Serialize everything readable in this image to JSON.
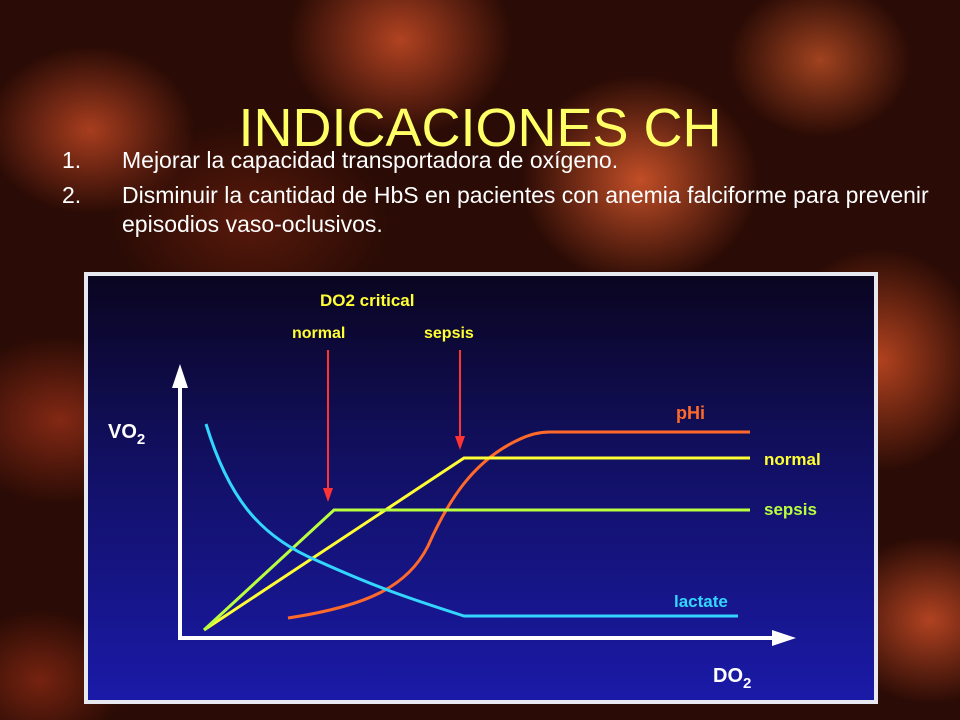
{
  "slide": {
    "title": "INDICACIONES CH",
    "bullets": [
      {
        "num": "1.",
        "text": "Mejorar la capacidad transportadora de oxígeno."
      },
      {
        "num": "2.",
        "text": "Disminuir la cantidad de HbS en pacientes con anemia falciforme para prevenir episodios vaso-oclusivos."
      }
    ]
  },
  "diagram": {
    "header": "DO2 critical",
    "arrow_normal": "normal",
    "arrow_sepsis": "sepsis",
    "y_axis": "VO",
    "y_axis_sub": "2",
    "x_axis": "DO",
    "x_axis_sub": "2",
    "curves": {
      "phi": "pHi",
      "normal": "normal",
      "sepsis": "sepsis",
      "lactate": "lactate"
    },
    "colors": {
      "title": "#ffff66",
      "phi": "#ff6a2a",
      "normal": "#ffff33",
      "sepsis": "#b8ff40",
      "lactate": "#33d6ff",
      "arrows": "#ff3333",
      "axes": "#ffffff"
    }
  }
}
